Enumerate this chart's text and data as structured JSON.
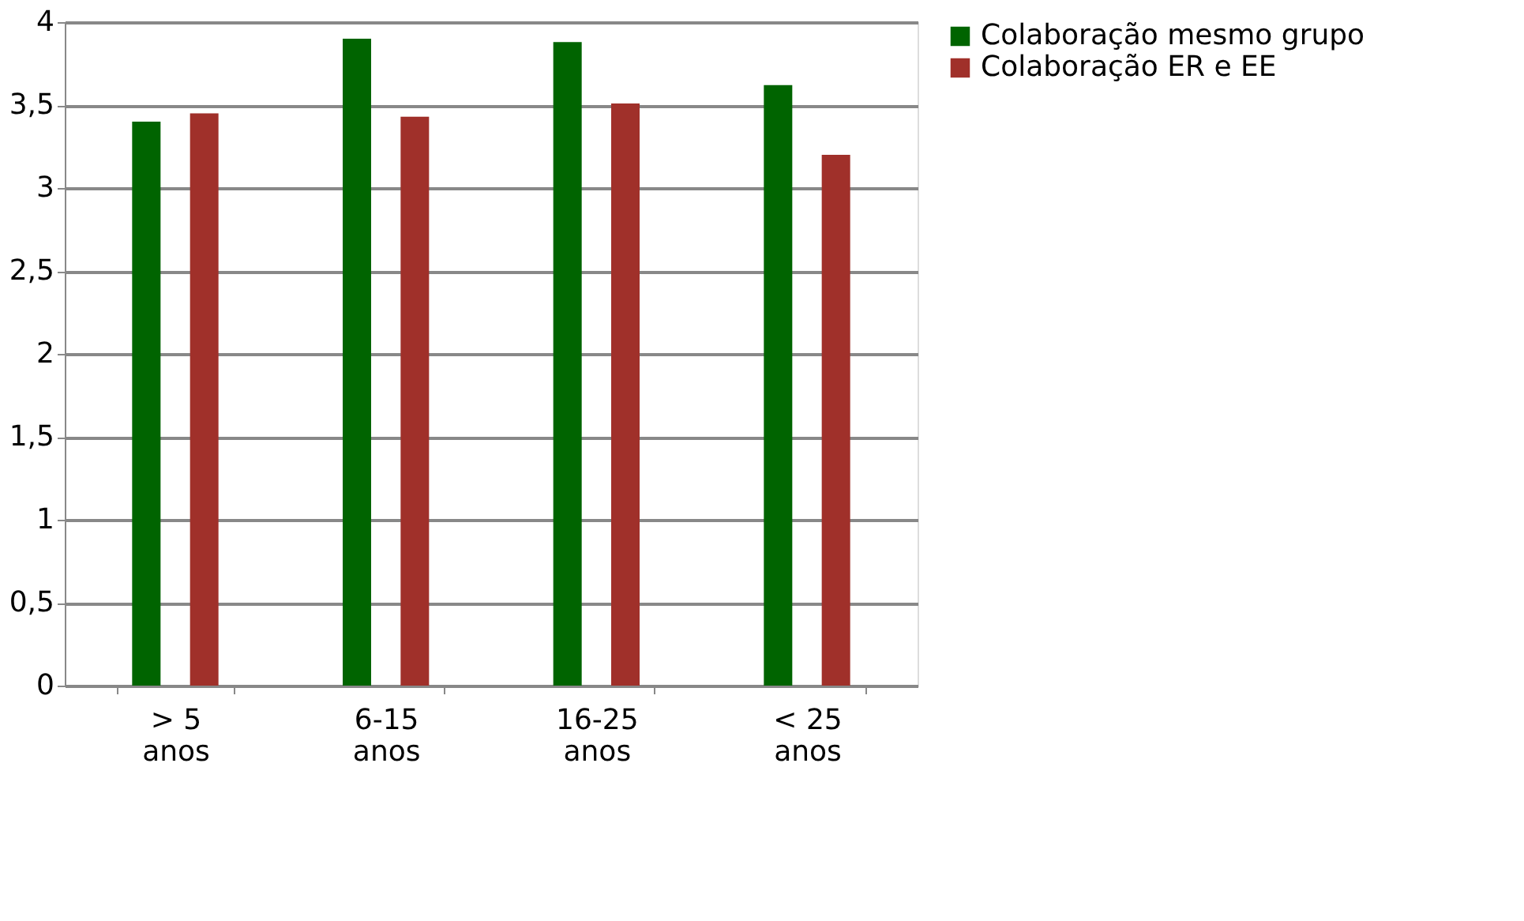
{
  "chart_data": {
    "type": "bar",
    "categories": [
      "> 5 anos",
      "6-15 anos",
      "16-25 anos",
      "< 25 anos"
    ],
    "series": [
      {
        "name": "Colaboração mesmo grupo",
        "color": "#006400",
        "values": [
          3.4,
          3.9,
          3.88,
          3.62
        ]
      },
      {
        "name": "Colaboração ER e EE",
        "color": "#a0302a",
        "values": [
          3.45,
          3.43,
          3.51,
          3.2
        ]
      }
    ],
    "ylim": [
      0,
      4
    ],
    "yticks": [
      0,
      {
        "value": 0.5,
        "label": "0,5"
      },
      1,
      {
        "value": 1.5,
        "label": "1,5"
      },
      2,
      {
        "value": 2.5,
        "label": "2,5"
      },
      3,
      {
        "value": 3.5,
        "label": "3,5"
      },
      4
    ],
    "grid": "y",
    "legend": "right"
  }
}
